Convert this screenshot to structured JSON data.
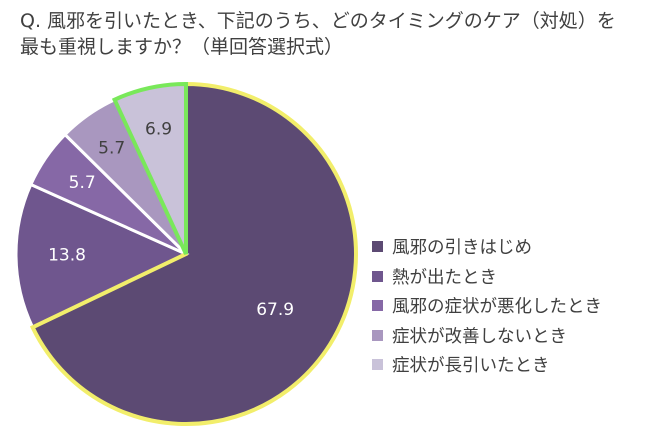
{
  "title": {
    "line1": "Q.  風邪を引いたとき、下記のうち、どのタイミングのケア（対処）を",
    "line2": "最も重視しますか？（単回答選択式）"
  },
  "chart_data": {
    "type": "pie",
    "categories": [
      "風邪の引きはじめ",
      "熱が出たとき",
      "風邪の症状が悪化したとき",
      "症状が改善しないとき",
      "症状が長引いたとき"
    ],
    "values": [
      67.9,
      13.8,
      5.7,
      5.7,
      6.9
    ],
    "labels": [
      "67.9",
      "13.8",
      "5.7",
      "5.7",
      "6.9"
    ],
    "colors": [
      "#5c4a73",
      "#6f568e",
      "#8668a6",
      "#a997bf",
      "#c9c2d9"
    ],
    "outline_colors": [
      "#f2ee6b",
      null,
      null,
      null,
      "#79e85a"
    ],
    "legend_position": "right"
  }
}
